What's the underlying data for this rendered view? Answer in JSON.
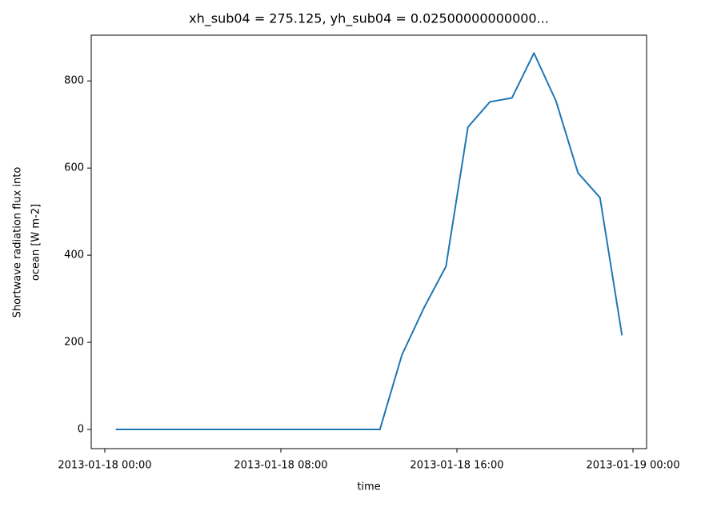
{
  "chart_data": {
    "type": "line",
    "title": "xh_sub04 = 275.125, yh_sub04 = 0.02500000000000...",
    "xlabel": "time",
    "ylabel": [
      "Shortwave radiation flux into",
      "ocean [W m-2]"
    ],
    "x": [
      "2013-01-18 00:30",
      "2013-01-18 01:30",
      "2013-01-18 02:30",
      "2013-01-18 03:30",
      "2013-01-18 04:30",
      "2013-01-18 05:30",
      "2013-01-18 06:30",
      "2013-01-18 07:30",
      "2013-01-18 08:30",
      "2013-01-18 09:30",
      "2013-01-18 10:30",
      "2013-01-18 11:30",
      "2013-01-18 12:30",
      "2013-01-18 13:30",
      "2013-01-18 14:30",
      "2013-01-18 15:30",
      "2013-01-18 16:30",
      "2013-01-18 17:30",
      "2013-01-18 18:30",
      "2013-01-18 19:30",
      "2013-01-18 20:30",
      "2013-01-18 21:30",
      "2013-01-18 22:30",
      "2013-01-18 23:30"
    ],
    "series": [
      {
        "color": "#1f77b4",
        "values": [
          0,
          0,
          0,
          0,
          0,
          0,
          0,
          0,
          0,
          0,
          0,
          0,
          0,
          171,
          279,
          374,
          694,
          752,
          761,
          864,
          754,
          589,
          532,
          216
        ]
      }
    ],
    "xlim": [
      "2013-01-17 23:23",
      "2013-01-19 00:37"
    ],
    "xticks": [
      "2013-01-18 00:00",
      "2013-01-18 08:00",
      "2013-01-18 16:00",
      "2013-01-19 00:00"
    ],
    "ylim": [
      -44,
      905
    ],
    "yticks": [
      0,
      200,
      400,
      600,
      800
    ]
  }
}
